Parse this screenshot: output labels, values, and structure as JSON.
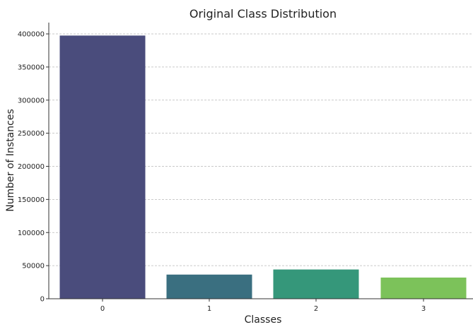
{
  "chart_data": {
    "type": "bar",
    "title": "Original Class Distribution",
    "xlabel": "Classes",
    "ylabel": "Number of Instances",
    "categories": [
      "0",
      "1",
      "2",
      "3"
    ],
    "values": [
      397500,
      36500,
      44200,
      32000
    ],
    "ylim": [
      0,
      420000
    ],
    "yticks": [
      0,
      50000,
      100000,
      150000,
      200000,
      250000,
      300000,
      350000,
      400000
    ],
    "ytick_labels": [
      "0",
      "50000",
      "100000",
      "150000",
      "200000",
      "250000",
      "300000",
      "350000",
      "400000"
    ],
    "colors": [
      "#4a4c7c",
      "#3a6f80",
      "#35977a",
      "#7cc25a"
    ],
    "grid": "horizontal-dashed",
    "legend": "none"
  }
}
